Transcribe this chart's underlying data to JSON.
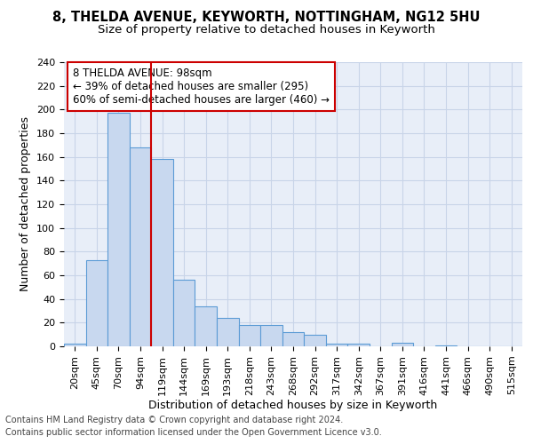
{
  "title1": "8, THELDA AVENUE, KEYWORTH, NOTTINGHAM, NG12 5HU",
  "title2": "Size of property relative to detached houses in Keyworth",
  "xlabel": "Distribution of detached houses by size in Keyworth",
  "ylabel": "Number of detached properties",
  "footer1": "Contains HM Land Registry data © Crown copyright and database right 2024.",
  "footer2": "Contains public sector information licensed under the Open Government Licence v3.0.",
  "annotation_line1": "8 THELDA AVENUE: 98sqm",
  "annotation_line2": "← 39% of detached houses are smaller (295)",
  "annotation_line3": "60% of semi-detached houses are larger (460) →",
  "bar_labels": [
    "20sqm",
    "45sqm",
    "70sqm",
    "94sqm",
    "119sqm",
    "144sqm",
    "169sqm",
    "193sqm",
    "218sqm",
    "243sqm",
    "268sqm",
    "292sqm",
    "317sqm",
    "342sqm",
    "367sqm",
    "391sqm",
    "416sqm",
    "441sqm",
    "466sqm",
    "490sqm",
    "515sqm"
  ],
  "bar_values": [
    2,
    73,
    197,
    168,
    158,
    56,
    34,
    24,
    18,
    18,
    12,
    10,
    2,
    2,
    0,
    3,
    0,
    1,
    0,
    0,
    0
  ],
  "bar_color": "#c8d8ef",
  "bar_edge_color": "#5b9bd5",
  "vline_x": 3.5,
  "vline_color": "#cc0000",
  "ylim": [
    0,
    240
  ],
  "yticks": [
    0,
    20,
    40,
    60,
    80,
    100,
    120,
    140,
    160,
    180,
    200,
    220,
    240
  ],
  "grid_color": "#c8d4e8",
  "background_color": "#e8eef8",
  "title1_fontsize": 10.5,
  "title2_fontsize": 9.5,
  "annotation_fontsize": 8.5,
  "xlabel_fontsize": 9,
  "ylabel_fontsize": 9,
  "tick_fontsize": 8,
  "footer_fontsize": 7
}
